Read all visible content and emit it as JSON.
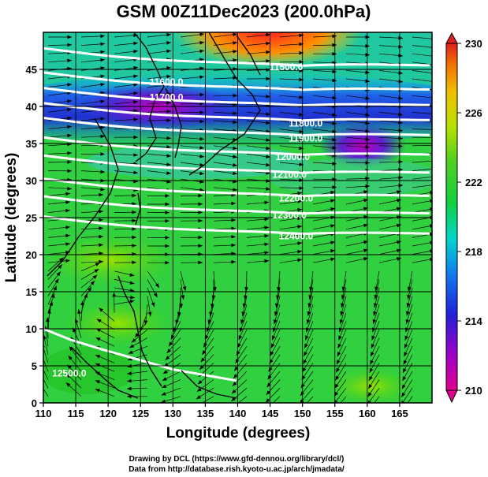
{
  "title": "GSM 00Z11Dec2023 (200.0hPa)",
  "xlabel": "Longitude (degrees)",
  "ylabel": "Latitude  (degrees)",
  "credits": [
    "Drawing by DCL (https://www.gfd-dennou.org/library/dcl/)",
    "Data from http://database.rish.kyoto-u.ac.jp/arch/jmadata/"
  ],
  "chart_data": {
    "type": "heatmap",
    "title": "GSM 00Z11Dec2023 (200.0hPa)",
    "xlabel": "Longitude (degrees)",
    "ylabel": "Latitude  (degrees)",
    "xlim": [
      110,
      170
    ],
    "ylim": [
      0,
      50
    ],
    "x_ticks": [
      "110",
      "115",
      "120",
      "125",
      "130",
      "135",
      "140",
      "145",
      "150",
      "155",
      "160",
      "165"
    ],
    "y_ticks": [
      "0",
      "5",
      "10",
      "15",
      "20",
      "25",
      "30",
      "35",
      "40",
      "45"
    ],
    "colorbar": {
      "min": 210,
      "max": 230,
      "ticks": [
        "230",
        "226",
        "222",
        "218",
        "214",
        "210"
      ]
    },
    "contour_labels": [
      {
        "text": "11500.0",
        "lon": 147.5,
        "lat": 45.3
      },
      {
        "text": "11600.0",
        "lon": 129.0,
        "lat": 43.3
      },
      {
        "text": "11700.0",
        "lon": 129.0,
        "lat": 41.2
      },
      {
        "text": "11800.0",
        "lon": 150.5,
        "lat": 37.7
      },
      {
        "text": "11900.0",
        "lon": 150.5,
        "lat": 35.7
      },
      {
        "text": "12000.0",
        "lon": 148.5,
        "lat": 33.2
      },
      {
        "text": "12100.0",
        "lon": 148.0,
        "lat": 30.8
      },
      {
        "text": "12200.0",
        "lon": 149.0,
        "lat": 27.6
      },
      {
        "text": "12300.0",
        "lon": 148.0,
        "lat": 25.3
      },
      {
        "text": "12400.0",
        "lon": 149.0,
        "lat": 22.5
      },
      {
        "text": "12500.0",
        "lon": 114.0,
        "lat": 4.0
      }
    ],
    "grid": true
  }
}
